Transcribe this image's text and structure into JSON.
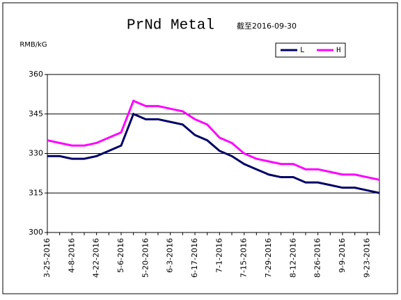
{
  "chart_data": {
    "type": "line",
    "title": "PrNd Metal",
    "subtitle": "截至2016-09-30",
    "y_label": "RMB/kG",
    "categories": [
      "3-25-2016",
      null,
      "4-8-2016",
      null,
      "4-22-2016",
      null,
      "5-6-2016",
      null,
      "5-20-2016",
      null,
      "6-3-2016",
      null,
      "6-17-2016",
      null,
      "7-1-2016",
      null,
      "7-15-2016",
      null,
      "7-29-2016",
      null,
      "8-12-2016",
      null,
      "8-26-2016",
      null,
      "9-9-2016",
      null,
      "9-23-2016",
      null
    ],
    "series": [
      {
        "name": "L",
        "color": "#000066",
        "values": [
          329,
          329,
          328,
          328,
          329,
          331,
          333,
          345,
          343,
          343,
          342,
          341,
          337,
          335,
          331,
          329,
          326,
          324,
          322,
          321,
          321,
          319,
          319,
          318,
          317,
          317,
          316,
          315
        ]
      },
      {
        "name": "H",
        "color": "#ff00ff",
        "values": [
          335,
          334,
          333,
          333,
          334,
          336,
          338,
          350,
          348,
          348,
          347,
          346,
          343,
          341,
          336,
          334,
          330,
          328,
          327,
          326,
          326,
          324,
          324,
          323,
          322,
          322,
          321,
          320
        ]
      }
    ],
    "ylim": [
      300,
      360
    ],
    "yticks": [
      300,
      315,
      330,
      345,
      360
    ],
    "grid": true,
    "legend": "top-right"
  }
}
